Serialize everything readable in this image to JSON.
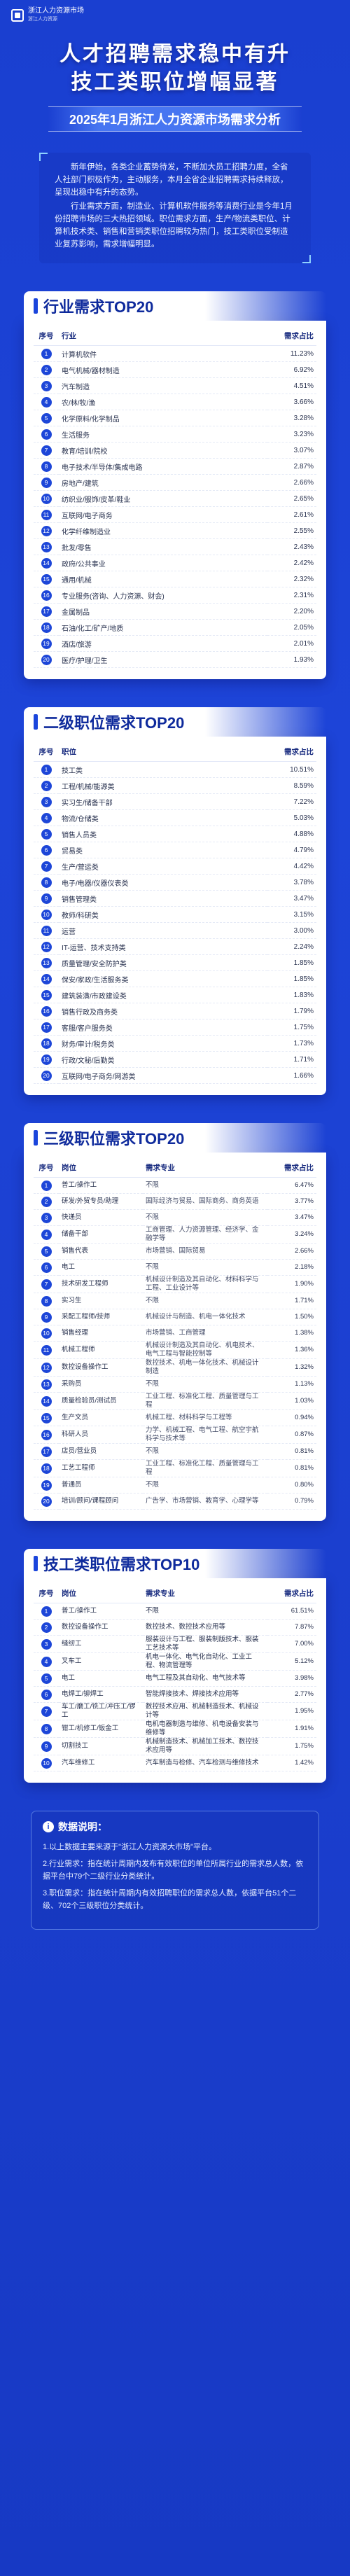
{
  "logo": {
    "title": "浙江人力资源市场",
    "subtitle": "浙江人力资源"
  },
  "hero": {
    "title_line1": "人才招聘需求稳中有升",
    "title_line2": "技工类职位增幅显著",
    "subtitle": "2025年1月浙江人力资源市场需求分析"
  },
  "intro": {
    "p1": "新年伊始，各类企业蓄势待发，不断加大员工招聘力度，全省人社部门积极作为，主动服务，本月全省企业招聘需求持续释放，呈现出稳中有升的态势。",
    "p2": "行业需求方面，制造业、计算机软件服务等消费行业是今年1月份招聘市场的三大热招领域。职位需求方面，生产/物流类职位、计算机技术类、销售和营销类职位招聘较为热门，技工类职位受制造业复苏影响，需求增幅明显。"
  },
  "section1": {
    "title": "行业需求TOP20",
    "headers": {
      "no": "序号",
      "name": "行业",
      "pct": "需求占比"
    },
    "rows": [
      {
        "no": "1",
        "name": "计算机软件",
        "pct": "11.23%"
      },
      {
        "no": "2",
        "name": "电气机械/器材制造",
        "pct": "6.92%"
      },
      {
        "no": "3",
        "name": "汽车制造",
        "pct": "4.51%"
      },
      {
        "no": "4",
        "name": "农/林/牧/渔",
        "pct": "3.66%"
      },
      {
        "no": "5",
        "name": "化学原料/化学制品",
        "pct": "3.28%"
      },
      {
        "no": "6",
        "name": "生活服务",
        "pct": "3.23%"
      },
      {
        "no": "7",
        "name": "教育/培训/院校",
        "pct": "3.07%"
      },
      {
        "no": "8",
        "name": "电子技术/半导体/集成电路",
        "pct": "2.87%"
      },
      {
        "no": "9",
        "name": "房地产/建筑",
        "pct": "2.66%"
      },
      {
        "no": "10",
        "name": "纺织业/服饰/皮革/鞋业",
        "pct": "2.65%"
      },
      {
        "no": "11",
        "name": "互联网/电子商务",
        "pct": "2.61%"
      },
      {
        "no": "12",
        "name": "化学纤维制造业",
        "pct": "2.55%"
      },
      {
        "no": "13",
        "name": "批发/零售",
        "pct": "2.43%"
      },
      {
        "no": "14",
        "name": "政府/公共事业",
        "pct": "2.42%"
      },
      {
        "no": "15",
        "name": "通用/机械",
        "pct": "2.32%"
      },
      {
        "no": "16",
        "name": "专业服务(咨询、人力资源、财会)",
        "pct": "2.31%"
      },
      {
        "no": "17",
        "name": "金属制品",
        "pct": "2.20%"
      },
      {
        "no": "18",
        "name": "石油/化工/矿产/地质",
        "pct": "2.05%"
      },
      {
        "no": "19",
        "name": "酒店/旅游",
        "pct": "2.01%"
      },
      {
        "no": "20",
        "name": "医疗/护理/卫生",
        "pct": "1.93%"
      }
    ]
  },
  "section2": {
    "title": "二级职位需求TOP20",
    "headers": {
      "no": "序号",
      "name": "职位",
      "pct": "需求占比"
    },
    "rows": [
      {
        "no": "1",
        "name": "技工类",
        "pct": "10.51%"
      },
      {
        "no": "2",
        "name": "工程/机械/能源类",
        "pct": "8.59%"
      },
      {
        "no": "3",
        "name": "实习生/储备干部",
        "pct": "7.22%"
      },
      {
        "no": "4",
        "name": "物流/仓储类",
        "pct": "5.03%"
      },
      {
        "no": "5",
        "name": "销售人员类",
        "pct": "4.88%"
      },
      {
        "no": "6",
        "name": "贸易类",
        "pct": "4.79%"
      },
      {
        "no": "7",
        "name": "生产/营运类",
        "pct": "4.42%"
      },
      {
        "no": "8",
        "name": "电子/电器/仪器仪表类",
        "pct": "3.78%"
      },
      {
        "no": "9",
        "name": "销售管理类",
        "pct": "3.47%"
      },
      {
        "no": "10",
        "name": "教师/科研类",
        "pct": "3.15%"
      },
      {
        "no": "11",
        "name": "运营",
        "pct": "3.00%"
      },
      {
        "no": "12",
        "name": "IT-运营、技术支持类",
        "pct": "2.24%"
      },
      {
        "no": "13",
        "name": "质量管理/安全防护类",
        "pct": "1.85%"
      },
      {
        "no": "14",
        "name": "保安/家政/生活服务类",
        "pct": "1.85%"
      },
      {
        "no": "15",
        "name": "建筑装潢/市政建设类",
        "pct": "1.83%"
      },
      {
        "no": "16",
        "name": "销售行政及商务类",
        "pct": "1.79%"
      },
      {
        "no": "17",
        "name": "客服/客户服务类",
        "pct": "1.75%"
      },
      {
        "no": "18",
        "name": "财务/审计/税务类",
        "pct": "1.73%"
      },
      {
        "no": "19",
        "name": "行政/文秘/后勤类",
        "pct": "1.71%"
      },
      {
        "no": "20",
        "name": "互联网/电子商务/网游类",
        "pct": "1.66%"
      }
    ]
  },
  "section3": {
    "title": "三级职位需求TOP20",
    "headers": {
      "no": "序号",
      "name": "岗位",
      "major": "需求专业",
      "pct": "需求占比"
    },
    "rows": [
      {
        "no": "1",
        "name": "普工/操作工",
        "major": "不限",
        "pct": "6.47%"
      },
      {
        "no": "2",
        "name": "研发/外贸专员/助理",
        "major": "国际经济与贸易、国际商务、商务英语",
        "pct": "3.77%"
      },
      {
        "no": "3",
        "name": "快递员",
        "major": "不限",
        "pct": "3.47%"
      },
      {
        "no": "4",
        "name": "储备干部",
        "major": "工商管理、人力资源管理、经济学、金融学等",
        "pct": "3.24%"
      },
      {
        "no": "5",
        "name": "销售代表",
        "major": "市场营销、国际贸易",
        "pct": "2.66%"
      },
      {
        "no": "6",
        "name": "电工",
        "major": "不限",
        "pct": "2.18%"
      },
      {
        "no": "7",
        "name": "技术研发工程师",
        "major": "机械设计制造及其自动化、材料科学与工程、工业设计等",
        "pct": "1.90%"
      },
      {
        "no": "8",
        "name": "实习生",
        "major": "不限",
        "pct": "1.71%"
      },
      {
        "no": "9",
        "name": "采配工程师/技师",
        "major": "机械设计与制造、机电一体化技术",
        "pct": "1.50%"
      },
      {
        "no": "10",
        "name": "销售经理",
        "major": "市场营销、工商管理",
        "pct": "1.38%"
      },
      {
        "no": "11",
        "name": "机械工程师",
        "major": "机械设计制造及其自动化、机电技术、电气工程与智能控制等",
        "pct": "1.36%"
      },
      {
        "no": "12",
        "name": "数控设备操作工",
        "major": "数控技术、机电一体化技术、机械设计制造",
        "pct": "1.32%"
      },
      {
        "no": "13",
        "name": "采购员",
        "major": "不限",
        "pct": "1.13%"
      },
      {
        "no": "14",
        "name": "质量检验员/测试员",
        "major": "工业工程、标准化工程、质量管理与工程",
        "pct": "1.03%"
      },
      {
        "no": "15",
        "name": "生产文员",
        "major": "机械工程、材料科学与工程等",
        "pct": "0.94%"
      },
      {
        "no": "16",
        "name": "科研人员",
        "major": "力学、机械工程、电气工程、航空宇航科学与技术等",
        "pct": "0.87%"
      },
      {
        "no": "17",
        "name": "店员/营业员",
        "major": "不限",
        "pct": "0.81%"
      },
      {
        "no": "18",
        "name": "工艺工程师",
        "major": "工业工程、标准化工程、质量管理与工程",
        "pct": "0.81%"
      },
      {
        "no": "19",
        "name": "普通员",
        "major": "不限",
        "pct": "0.80%"
      },
      {
        "no": "20",
        "name": "培训/顾问/课程顾问",
        "major": "广告学、市场营销、教育学、心理学等",
        "pct": "0.79%"
      }
    ]
  },
  "section4": {
    "title": "技工类职位需求TOP10",
    "headers": {
      "no": "序号",
      "name": "岗位",
      "major": "需求专业",
      "pct": "需求占比"
    },
    "rows": [
      {
        "no": "1",
        "name": "普工/操作工",
        "major": "不限",
        "pct": "61.51%"
      },
      {
        "no": "2",
        "name": "数控设备操作工",
        "major": "数控技术、数控技术应用等",
        "pct": "7.87%"
      },
      {
        "no": "3",
        "name": "缝纫工",
        "major": "服装设计与工程、服装制版技术、服装工艺技术等",
        "pct": "7.00%"
      },
      {
        "no": "4",
        "name": "叉车工",
        "major": "机电一体化、电气化自动化、工业工程、物流管理等",
        "pct": "5.12%"
      },
      {
        "no": "5",
        "name": "电工",
        "major": "电气工程及其自动化、电气技术等",
        "pct": "3.98%"
      },
      {
        "no": "6",
        "name": "电焊工/铆焊工",
        "major": "智能焊接技术、焊接技术应用等",
        "pct": "2.77%"
      },
      {
        "no": "7",
        "name": "车工/磨工/铣工/冲压工/锣工",
        "major": "数控技术应用、机械制造技术、机械设计等",
        "pct": "1.95%"
      },
      {
        "no": "8",
        "name": "钳工/机修工/钣金工",
        "major": "电机电器制造与维修、机电设备安装与维修等",
        "pct": "1.91%"
      },
      {
        "no": "9",
        "name": "切割技工",
        "major": "机械制造技术、机械加工技术、数控技术应用等",
        "pct": "1.75%"
      },
      {
        "no": "10",
        "name": "汽车维修工",
        "major": "汽车制造与检修、汽车检测与维修技术",
        "pct": "1.42%"
      }
    ]
  },
  "notes": {
    "title": "数据说明：",
    "items": [
      "1.以上数据主要来源于\"浙江人力资源大市场\"平台。",
      "2.行业需求：指在统计周期内发布有效职位的单位所属行业的需求总人数，依据平台中79个二级行业分类统计。",
      "3.职位需求：指在统计周期内有效招聘职位的需求总人数，依据平台51个二级、702个三级职位分类统计。"
    ]
  }
}
